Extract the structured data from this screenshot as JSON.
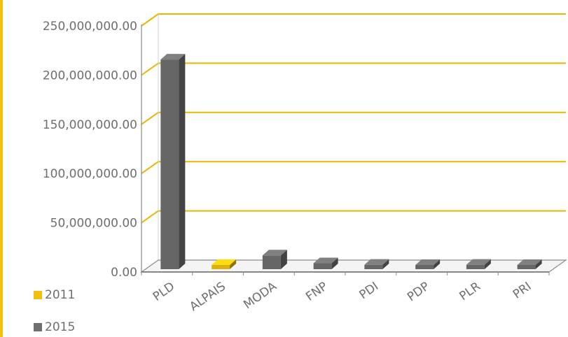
{
  "chart_data": {
    "type": "bar",
    "categories": [
      "PLD",
      "ALPAIS",
      "MODA",
      "FNP",
      "PDI",
      "PDP",
      "PLR",
      "PRI"
    ],
    "series": [
      {
        "name": "2011",
        "color": "#F2C00F",
        "values": [
          0,
          1500000,
          0,
          0,
          0,
          0,
          0,
          0
        ]
      },
      {
        "name": "2015",
        "color": "#6F6F6F",
        "values": [
          213000000,
          0,
          14000000,
          6000000,
          4500000,
          3500000,
          4500000,
          3000000
        ]
      }
    ],
    "y_tick_labels": [
      "0.00",
      "50,000,000.00",
      "100,000,000.00",
      "150,000,000.00",
      "200,000,000.00",
      "250,000,000.00"
    ],
    "ylim": [
      0,
      250000000
    ],
    "grid": true,
    "gridline_color": "#E6B800",
    "legend_position": "bottom-left",
    "title": "",
    "xlabel": "",
    "ylabel": ""
  }
}
